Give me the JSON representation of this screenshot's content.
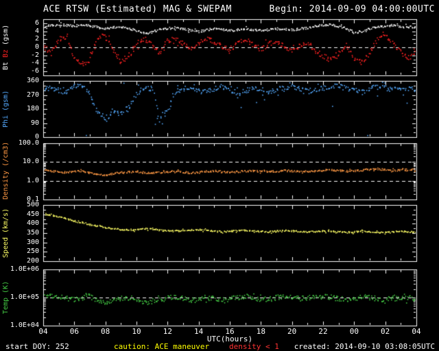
{
  "header": {
    "title": "ACE RTSW (Estimated) MAG & SWEPAM",
    "begin": "Begin: 2014-09-09 04:00:00UTC"
  },
  "footer": {
    "start_doy": "start DOY: 252",
    "caution": "caution: ACE maneuver",
    "density_warning": "density < 1",
    "created": "created: 2014-09-10 03:08:05UTC"
  },
  "colors": {
    "background": "#000000",
    "foreground": "#ffffff",
    "bt": "#ffffff",
    "bz": "#ff2222",
    "phi": "#55aaff",
    "density": "#ff9944",
    "speed": "#ffff66",
    "temp": "#44cc44",
    "caution": "#ffff00",
    "warning": "#ff3333"
  },
  "chart_data": {
    "type": "scatter",
    "title": "ACE RTSW (Estimated) MAG & SWEPAM",
    "x_axis": {
      "label": "UTC(hours)",
      "ticks": [
        "04",
        "06",
        "08",
        "10",
        "12",
        "14",
        "16",
        "18",
        "20",
        "22",
        "00",
        "02",
        "04"
      ],
      "range_hours": [
        4,
        28
      ]
    },
    "x_hours": [
      4,
      4.5,
      5,
      5.5,
      6,
      6.5,
      7,
      7.5,
      8,
      8.5,
      9,
      9.5,
      10,
      10.5,
      11,
      11.5,
      12,
      12.5,
      13,
      13.5,
      14,
      14.5,
      15,
      15.5,
      16,
      16.5,
      17,
      17.5,
      18,
      18.5,
      19,
      19.5,
      20,
      20.5,
      21,
      21.5,
      22,
      22.5,
      23,
      23.5,
      24,
      24.5,
      25,
      25.5,
      26,
      26.5,
      27,
      27.5,
      28
    ],
    "panels": [
      {
        "id": "bt-bz",
        "scale": "linear",
        "ylim": [
          -7,
          7
        ],
        "label_parts": [
          {
            "text": "Bt",
            "color": "#ffffff"
          },
          {
            "text": "Bz",
            "color": "#ff2222"
          },
          {
            "text": "(gsm)",
            "color": "#ffffff"
          }
        ],
        "yticks": [
          {
            "label": "6",
            "value": 6
          },
          {
            "label": "4",
            "value": 4
          },
          {
            "label": "2",
            "value": 2
          },
          {
            "label": "0",
            "value": 0
          },
          {
            "label": "-2",
            "value": -2
          },
          {
            "label": "-4",
            "value": -4
          },
          {
            "label": "-6",
            "value": -6
          }
        ],
        "dashed_lines": [
          0
        ],
        "series": [
          {
            "name": "Bt",
            "color": "#ffffff",
            "values": [
              5.2,
              5.4,
              5.6,
              5.5,
              5.3,
              5.6,
              5.4,
              5.0,
              4.7,
              4.9,
              5.1,
              4.6,
              4.2,
              3.4,
              3.8,
              4.4,
              4.7,
              4.9,
              4.6,
              4.2,
              3.9,
              4.3,
              4.6,
              4.4,
              4.1,
              4.4,
              4.6,
              4.3,
              4.1,
              4.4,
              4.6,
              4.5,
              4.3,
              4.6,
              4.9,
              5.2,
              5.5,
              5.6,
              5.2,
              4.6,
              3.7,
              3.9,
              4.6,
              5.1,
              5.3,
              5.5,
              5.2,
              5.0,
              5.1
            ]
          },
          {
            "name": "Bz",
            "color": "#ff2222",
            "values": [
              0.5,
              -1.5,
              1.8,
              2.4,
              -2.2,
              -4.2,
              -3.1,
              2.2,
              3.1,
              -0.8,
              -3.6,
              -2.2,
              0.8,
              2.1,
              0.4,
              -1.6,
              1.6,
              2.3,
              0.9,
              -0.6,
              1.1,
              2.1,
              1.4,
              0.4,
              -0.9,
              0.9,
              1.9,
              0.7,
              -0.5,
              0.8,
              1.5,
              0.3,
              -1.1,
              0.4,
              1.3,
              -0.7,
              -2.1,
              -3.3,
              -1.6,
              0.7,
              -2.7,
              -3.9,
              -1.2,
              1.9,
              3.4,
              1.2,
              -1.4,
              -2.6,
              -1.2
            ]
          }
        ]
      },
      {
        "id": "phi",
        "scale": "linear",
        "ylim": [
          0,
          360
        ],
        "label_parts": [
          {
            "text": "Phi",
            "color": "#55aaff"
          },
          {
            "text": "(gsm)",
            "color": "#55aaff"
          }
        ],
        "yticks": [
          {
            "label": "360",
            "value": 360
          },
          {
            "label": "270",
            "value": 270
          },
          {
            "label": "180",
            "value": 180
          },
          {
            "label": "90",
            "value": 90
          },
          {
            "label": "0",
            "value": 0
          }
        ],
        "dashed_lines": [],
        "series": [
          {
            "name": "Phi",
            "color": "#55aaff",
            "values": [
              305,
              315,
              298,
              288,
              322,
              335,
              282,
              155,
              118,
              162,
              142,
              185,
              272,
              305,
              312,
              128,
              165,
              292,
              308,
              318,
              298,
              288,
              312,
              322,
              298,
              278,
              295,
              312,
              305,
              288,
              302,
              318,
              325,
              310,
              295,
              302,
              312,
              322,
              332,
              312,
              298,
              288,
              312,
              322,
              315,
              305,
              298,
              312,
              306
            ]
          }
        ]
      },
      {
        "id": "density",
        "scale": "log",
        "ylim": [
          0.1,
          100
        ],
        "label_parts": [
          {
            "text": "Density",
            "color": "#ff9944"
          },
          {
            "text": "(/cm3)",
            "color": "#ff9944"
          }
        ],
        "yticks": [
          {
            "label": "100.0",
            "value": 100
          },
          {
            "label": "10.0",
            "value": 10
          },
          {
            "label": "1.0",
            "value": 1
          },
          {
            "label": "0.1",
            "value": 0.1
          }
        ],
        "dashed_lines": [
          10,
          1
        ],
        "series": [
          {
            "name": "Density",
            "color": "#ff9944",
            "values": [
              3.6,
              3.3,
              3.0,
              2.8,
              3.1,
              3.4,
              2.6,
              2.2,
              2.0,
              2.4,
              2.7,
              2.9,
              3.1,
              2.7,
              2.5,
              2.8,
              3.0,
              3.2,
              2.9,
              2.6,
              2.8,
              3.1,
              3.3,
              3.0,
              2.8,
              3.0,
              3.2,
              3.4,
              3.1,
              2.9,
              3.2,
              3.5,
              3.3,
              3.0,
              3.2,
              3.4,
              3.6,
              3.8,
              3.5,
              3.2,
              3.4,
              3.7,
              4.0,
              4.2,
              3.8,
              3.5,
              3.7,
              4.0,
              3.8
            ]
          }
        ]
      },
      {
        "id": "speed",
        "scale": "linear",
        "ylim": [
          200,
          500
        ],
        "label_parts": [
          {
            "text": "Speed",
            "color": "#ffff66"
          },
          {
            "text": "(km/s)",
            "color": "#ffff66"
          }
        ],
        "yticks": [
          {
            "label": "500",
            "value": 500
          },
          {
            "label": "450",
            "value": 450
          },
          {
            "label": "400",
            "value": 400
          },
          {
            "label": "350",
            "value": 350
          },
          {
            "label": "300",
            "value": 300
          },
          {
            "label": "250",
            "value": 250
          },
          {
            "label": "200",
            "value": 200
          }
        ],
        "dashed_lines": [],
        "series": [
          {
            "name": "Speed",
            "color": "#ffff66",
            "values": [
              452,
              445,
              436,
              426,
              416,
              406,
              396,
              386,
              379,
              373,
              369,
              366,
              369,
              373,
              371,
              366,
              362,
              360,
              363,
              366,
              368,
              365,
              360,
              357,
              360,
              363,
              365,
              362,
              358,
              356,
              360,
              364,
              362,
              358,
              355,
              358,
              362,
              360,
              356,
              353,
              356,
              360,
              358,
              355,
              352,
              356,
              360,
              357,
              355
            ]
          }
        ]
      },
      {
        "id": "temp",
        "scale": "log",
        "ylim": [
          10000,
          1000000
        ],
        "label_parts": [
          {
            "text": "Temp",
            "color": "#44cc44"
          },
          {
            "text": "(K)",
            "color": "#44cc44"
          }
        ],
        "yticks": [
          {
            "label": "1.0E+06",
            "value": 1000000
          },
          {
            "label": "1.0E+05",
            "value": 100000
          },
          {
            "label": "1.0E+04",
            "value": 10000
          }
        ],
        "dashed_lines": [
          100000
        ],
        "series": [
          {
            "name": "Temp",
            "color": "#44cc44",
            "values": [
              130000,
              120000,
              110000,
              92000,
              82000,
              100000,
              118000,
              72000,
              62000,
              80000,
              92000,
              100000,
              86000,
              70000,
              66000,
              80000,
              95000,
              105000,
              90000,
              76000,
              86000,
              100000,
              92000,
              80000,
              90000,
              100000,
              110000,
              95000,
              85000,
              90000,
              100000,
              110000,
              100000,
              90000,
              95000,
              105000,
              110000,
              100000,
              90000,
              85000,
              95000,
              105000,
              100000,
              90000,
              80000,
              90000,
              100000,
              95000,
              90000
            ]
          }
        ]
      }
    ]
  }
}
